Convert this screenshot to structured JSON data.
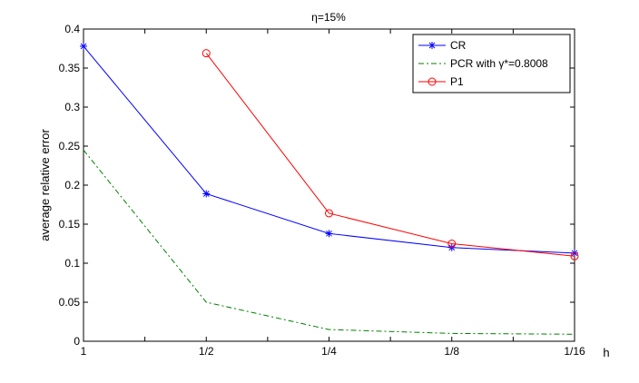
{
  "chart_data": {
    "type": "line",
    "title": "η=15%",
    "xlabel": "h",
    "ylabel": "average relative error",
    "categories": [
      "1",
      "1/2",
      "1/4",
      "1/8",
      "1/16"
    ],
    "ylim": [
      0,
      0.4
    ],
    "yticks": [
      0,
      0.05,
      0.1,
      0.15,
      0.2,
      0.25,
      0.3,
      0.35,
      0.4
    ],
    "ytick_labels": [
      "0",
      "0.05",
      "0.1",
      "0.15",
      "0.2",
      "0.25",
      "0.3",
      "0.35",
      "0.4"
    ],
    "grid": false,
    "legend_position": "top-right",
    "series": [
      {
        "name": "CR",
        "color": "#0000ff",
        "line_style": "solid",
        "marker": "asterisk",
        "values": [
          0.378,
          0.189,
          0.138,
          0.12,
          0.113
        ]
      },
      {
        "name": "PCR with γ*=0.8008",
        "color": "#008000",
        "line_style": "dashdot",
        "marker": "none",
        "values": [
          0.245,
          0.05,
          0.015,
          0.01,
          0.009
        ]
      },
      {
        "name": "P1",
        "color": "#ff0000",
        "line_style": "solid",
        "marker": "circle",
        "values": [
          null,
          0.369,
          0.164,
          0.125,
          0.109
        ]
      }
    ]
  }
}
